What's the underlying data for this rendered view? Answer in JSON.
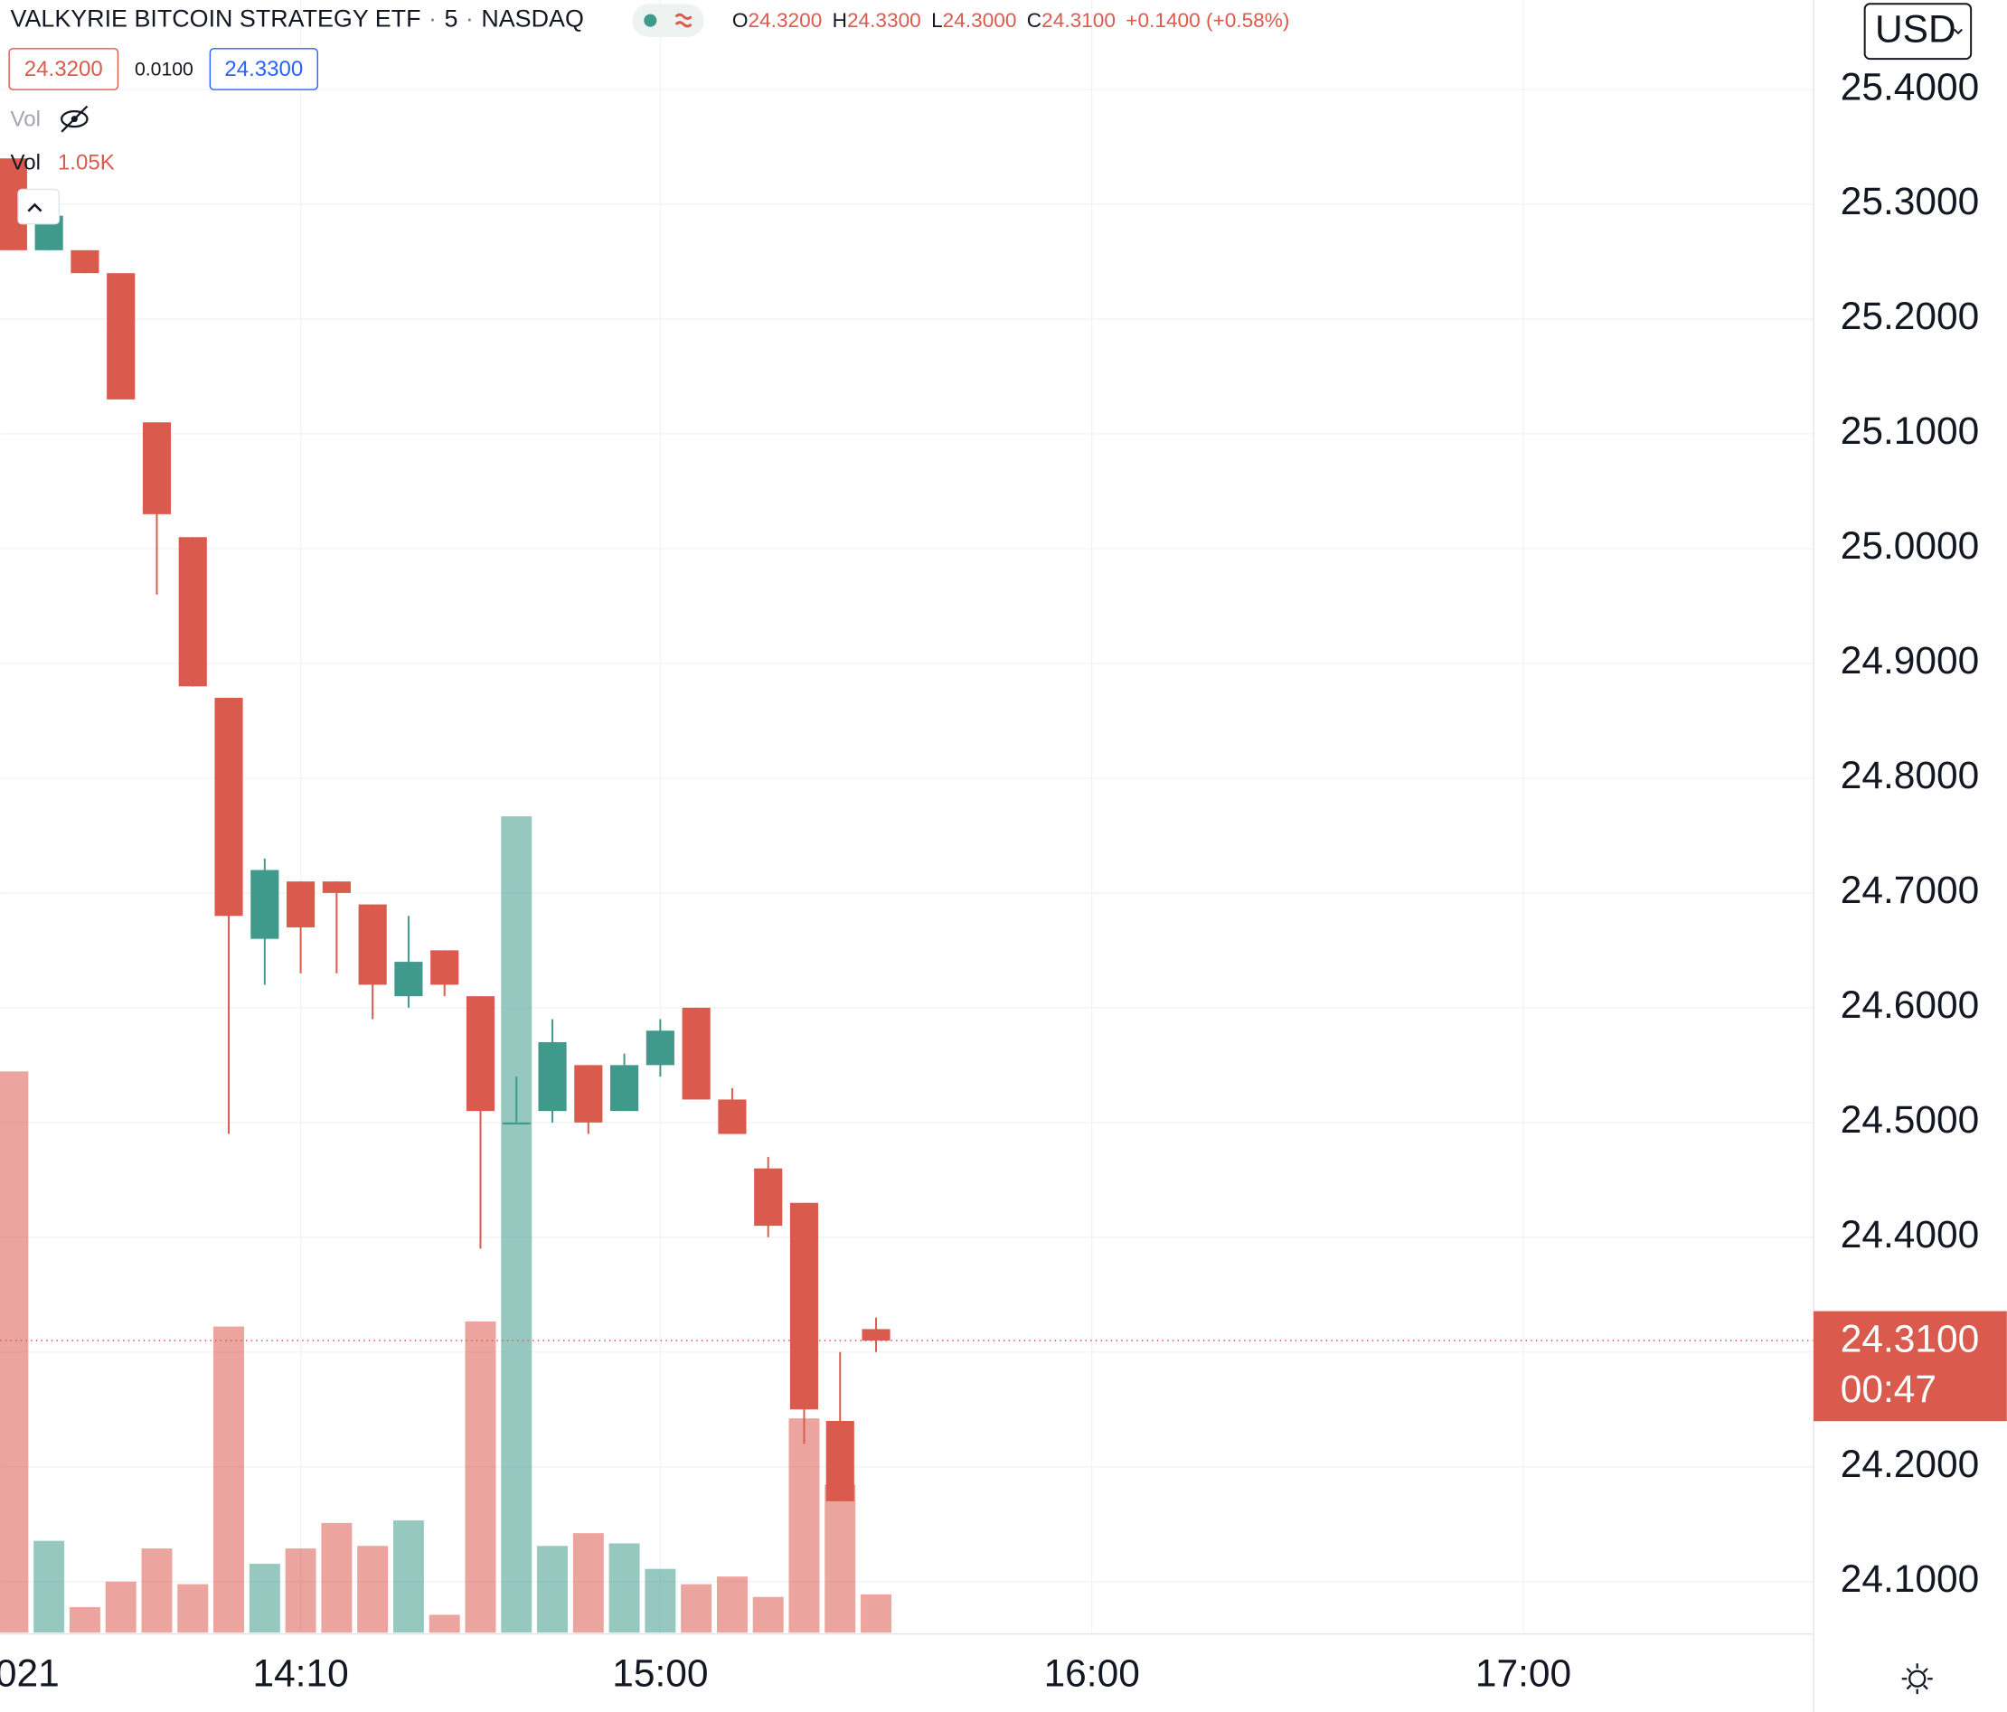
{
  "header": {
    "title": "VALKYRIE BITCOIN STRATEGY ETF",
    "separator": "·",
    "interval": "5",
    "exchange": "NASDAQ",
    "ohlc": {
      "o_label": "O",
      "open": "24.3200",
      "h_label": "H",
      "high": "24.3300",
      "l_label": "L",
      "low": "24.3000",
      "c_label": "C",
      "close": "24.3100",
      "change": "+0.1400 (+0.58%)"
    },
    "bid": "24.3200",
    "spread": "0.0100",
    "ask": "24.3300",
    "vol_hidden": "Vol",
    "currency": "USD"
  },
  "chart_data": {
    "type": "candlestick",
    "x": [
      0,
      1,
      2,
      3,
      4,
      5,
      6,
      7,
      8,
      9,
      10,
      11,
      12,
      13,
      14,
      15,
      16,
      17,
      18,
      19,
      20,
      21,
      22,
      23,
      24
    ],
    "open": [
      25.34,
      25.26,
      25.26,
      25.24,
      25.11,
      25.01,
      24.87,
      24.66,
      24.71,
      24.71,
      24.69,
      24.61,
      24.65,
      24.61,
      24.5,
      24.51,
      24.55,
      24.51,
      24.55,
      24.6,
      24.52,
      24.46,
      24.43,
      24.24,
      24.32
    ],
    "high": [
      25.34,
      25.29,
      25.26,
      25.24,
      25.11,
      25.01,
      24.87,
      24.73,
      24.71,
      24.71,
      24.69,
      24.68,
      24.65,
      24.61,
      24.54,
      24.59,
      24.55,
      24.56,
      24.59,
      24.6,
      24.53,
      24.47,
      24.43,
      24.3,
      24.33
    ],
    "low": [
      25.26,
      25.26,
      25.24,
      25.13,
      24.96,
      24.88,
      24.49,
      24.62,
      24.63,
      24.63,
      24.59,
      24.6,
      24.61,
      24.39,
      24.5,
      24.5,
      24.49,
      24.51,
      24.54,
      24.52,
      24.49,
      24.4,
      24.22,
      24.17,
      24.3
    ],
    "close": [
      25.26,
      25.29,
      25.24,
      25.13,
      25.03,
      24.88,
      24.68,
      24.72,
      24.67,
      24.7,
      24.62,
      24.64,
      24.62,
      24.51,
      24.5,
      24.57,
      24.5,
      24.55,
      24.58,
      24.52,
      24.49,
      24.41,
      24.25,
      24.17,
      24.31
    ],
    "volume_name": "Vol",
    "volume": [
      15400,
      2520,
      700,
      1400,
      2310,
      1330,
      8400,
      1890,
      2310,
      3010,
      2380,
      3080,
      490,
      8540,
      22400,
      2380,
      2730,
      2450,
      1750,
      1330,
      1540,
      980,
      5880,
      4060,
      1050
    ],
    "volume_last_label": "1.05K",
    "vlim": [
      0,
      44800
    ],
    "xlim": [
      -0.356,
      50.07
    ],
    "xticks": [
      {
        "value": 0.4,
        "label": "021"
      },
      {
        "value": 8,
        "label": "14:10"
      },
      {
        "value": 18,
        "label": "15:00"
      },
      {
        "value": 30,
        "label": "16:00"
      },
      {
        "value": 42,
        "label": "17:00"
      }
    ],
    "ylim": [
      24.0555,
      25.478
    ],
    "yticks": [
      {
        "value": 24.1,
        "label": "24.1000"
      },
      {
        "value": 24.2,
        "label": "24.2000"
      },
      {
        "value": 24.3,
        "label": "24.3000"
      },
      {
        "value": 24.4,
        "label": "24.4000"
      },
      {
        "value": 24.5,
        "label": "24.5000"
      },
      {
        "value": 24.6,
        "label": "24.6000"
      },
      {
        "value": 24.7,
        "label": "24.7000"
      },
      {
        "value": 24.8,
        "label": "24.8000"
      },
      {
        "value": 24.9,
        "label": "24.9000"
      },
      {
        "value": 25.0,
        "label": "25.0000"
      },
      {
        "value": 25.1,
        "label": "25.1000"
      },
      {
        "value": 25.2,
        "label": "25.2000"
      },
      {
        "value": 25.3,
        "label": "25.3000"
      },
      {
        "value": 25.4,
        "label": "25.4000"
      }
    ],
    "last_price": {
      "value": 24.31,
      "label": "24.3100"
    },
    "countdown": "00:47",
    "up_color": "#3f9a8c",
    "down_color": "#db5a4e",
    "grid": true
  }
}
